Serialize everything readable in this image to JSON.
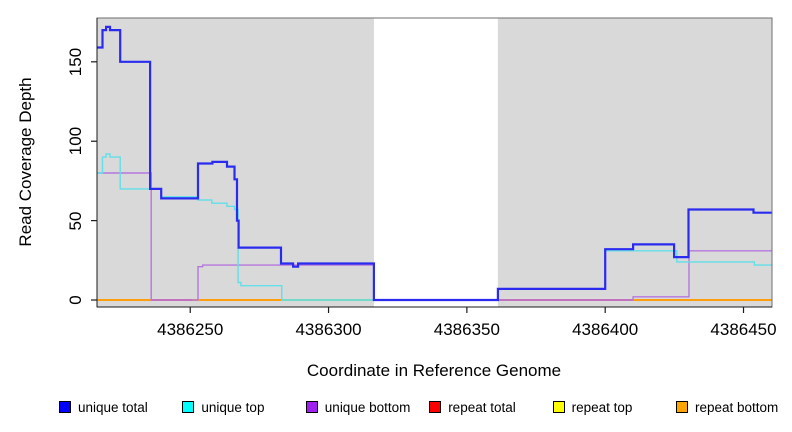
{
  "chart_data": {
    "type": "line",
    "subtype": "step-coverage-plot",
    "title": "",
    "xlabel": "Coordinate in Reference Genome",
    "ylabel": "Read Coverage Depth",
    "x_domain": [
      4386216.3,
      4386460.3
    ],
    "y_domain": [
      -4.4,
      177.6
    ],
    "grid": "off",
    "plot_background_color": "#d9d9d9",
    "x_ticks": [
      {
        "value": 4386250,
        "label": "4386250"
      },
      {
        "value": 4386300,
        "label": "4386300"
      },
      {
        "value": 4386350,
        "label": "4386350"
      },
      {
        "value": 4386400,
        "label": "4386400"
      },
      {
        "value": 4386450,
        "label": "4386450"
      }
    ],
    "y_ticks": [
      {
        "value": 0,
        "label": "0"
      },
      {
        "value": 50,
        "label": "50"
      },
      {
        "value": 100,
        "label": "100"
      },
      {
        "value": 150,
        "label": "150"
      }
    ],
    "white_gap_region": {
      "x": [
        4386316.4,
        4386361.2
      ],
      "note": "white unshaded band across plot"
    },
    "series": [
      {
        "name": "unique total",
        "color": "#2b2bf0",
        "width": 2.2,
        "points": [
          [
            4386216.3,
            159
          ],
          [
            4386218.3,
            170
          ],
          [
            4386219.6,
            172
          ],
          [
            4386221.0,
            170
          ],
          [
            4386224.7,
            150
          ],
          [
            4386235.5,
            70
          ],
          [
            4386239.5,
            64
          ],
          [
            4386252.8,
            86
          ],
          [
            4386258.0,
            87
          ],
          [
            4386263.3,
            84
          ],
          [
            4386266.0,
            76
          ],
          [
            4386266.9,
            50
          ],
          [
            4386267.5,
            33
          ],
          [
            4386282.8,
            23
          ],
          [
            4386287.2,
            21
          ],
          [
            4386289.0,
            23
          ],
          [
            4386316.4,
            0
          ],
          [
            4386361.2,
            7
          ],
          [
            4386400.0,
            32
          ],
          [
            4386410.1,
            35
          ],
          [
            4386424.9,
            27
          ],
          [
            4386430.1,
            57
          ],
          [
            4386453.6,
            55
          ]
        ]
      },
      {
        "name": "unique top",
        "color": "#62dfe8",
        "width": 1.4,
        "points": [
          [
            4386216.3,
            80
          ],
          [
            4386218.3,
            90
          ],
          [
            4386219.6,
            92
          ],
          [
            4386221.0,
            90
          ],
          [
            4386224.7,
            70
          ],
          [
            4386239.5,
            65
          ],
          [
            4386252.8,
            63
          ],
          [
            4386257.8,
            61
          ],
          [
            4386263.3,
            59
          ],
          [
            4386266.0,
            57
          ],
          [
            4386267.3,
            11
          ],
          [
            4386268.3,
            9
          ],
          [
            4386283.1,
            0
          ],
          [
            4386361.2,
            7
          ],
          [
            4386400.0,
            31
          ],
          [
            4386425.9,
            24
          ],
          [
            4386453.9,
            22
          ]
        ]
      },
      {
        "name": "unique bottom",
        "color": "#b577de",
        "width": 1.4,
        "points": [
          [
            4386216.3,
            80
          ],
          [
            4386235.9,
            0
          ],
          [
            4386252.8,
            21
          ],
          [
            4386254.5,
            22
          ],
          [
            4386316.4,
            0
          ],
          [
            4386410.1,
            2
          ],
          [
            4386430.3,
            31
          ]
        ]
      },
      {
        "name": "repeat total",
        "color": "#dc4f6f",
        "width": 1.4,
        "points": [
          [
            4386216.3,
            0
          ]
        ]
      },
      {
        "name": "repeat top",
        "color": "#ffff00",
        "width": 1.4,
        "points": [
          [
            4386216.3,
            0
          ]
        ]
      },
      {
        "name": "repeat bottom",
        "color": "#ff9e00",
        "width": 1.7,
        "points": [
          [
            4386216.3,
            0
          ]
        ]
      }
    ],
    "baseline_visible_segments": [
      {
        "series": "repeat total",
        "color": "#dc4f6f",
        "x": [
          4386235.9,
          4386250.6
        ]
      },
      {
        "series": "top-series overlap",
        "color": "#8fcf8f",
        "x": [
          4386283.1,
          4386316.4
        ]
      },
      {
        "series": "repeat total",
        "color": "#dc4f6f",
        "x": [
          4386361.2,
          4386410.1
        ]
      }
    ],
    "legend": {
      "position": "bottom",
      "items": [
        {
          "label": "unique total",
          "color": "#0000ff"
        },
        {
          "label": "unique top",
          "color": "#00ffff"
        },
        {
          "label": "unique bottom",
          "color": "#a020f0"
        },
        {
          "label": "repeat total",
          "color": "#ff0000"
        },
        {
          "label": "repeat top",
          "color": "#ffff00"
        },
        {
          "label": "repeat bottom",
          "color": "#ffa500"
        }
      ]
    }
  }
}
